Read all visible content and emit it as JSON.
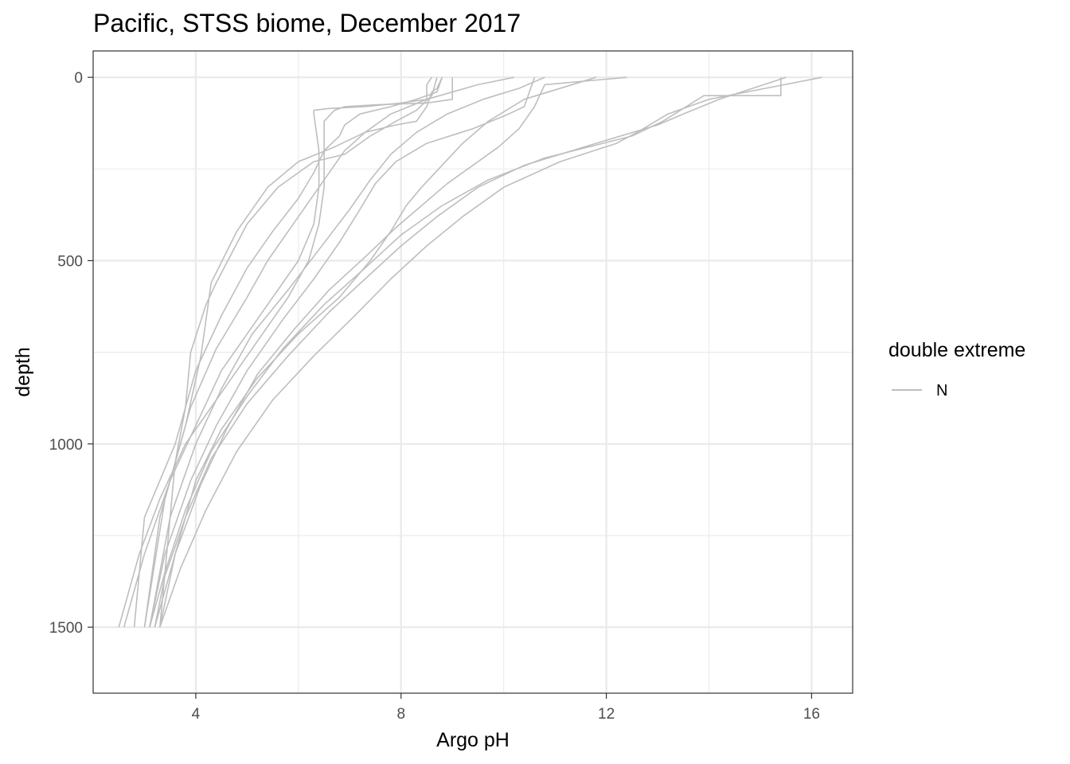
{
  "chart_data": {
    "type": "line",
    "title": "Pacific, STSS biome, December 2017",
    "xlabel": "Argo pH",
    "ylabel": "depth",
    "xlim": [
      2.0,
      16.8
    ],
    "ylim": [
      1680,
      -72
    ],
    "y_reversed": true,
    "grid": true,
    "x_ticks": [
      4,
      8,
      12,
      16
    ],
    "y_ticks": [
      0,
      500,
      1000,
      1500
    ],
    "line_color": "#bebebe",
    "legend": {
      "title": "double extreme",
      "position": "right",
      "entries": [
        "N"
      ]
    },
    "series": [
      {
        "x": [
          8.6,
          8.5,
          8.5,
          8.0,
          7.3,
          6.6,
          6.3,
          6.3,
          6.4,
          6.4,
          6.3,
          6.0,
          5.5,
          5.0,
          4.5,
          4.0,
          3.5,
          3.0,
          2.6
        ],
        "y": [
          0,
          20,
          60,
          70,
          80,
          85,
          90,
          100,
          200,
          300,
          400,
          500,
          600,
          700,
          800,
          950,
          1100,
          1300,
          1500
        ]
      },
      {
        "x": [
          9.0,
          9.0,
          8.5,
          7.5,
          6.9,
          6.7,
          6.5,
          6.5,
          6.5,
          6.4,
          6.2,
          5.8,
          5.3,
          4.8,
          4.3,
          3.8,
          3.3,
          2.9,
          2.5
        ],
        "y": [
          0,
          60,
          70,
          75,
          80,
          90,
          120,
          200,
          300,
          400,
          500,
          600,
          700,
          800,
          900,
          1000,
          1150,
          1300,
          1500
        ]
      },
      {
        "x": [
          8.8,
          8.7,
          8.3,
          7.8,
          7.2,
          6.9,
          6.8,
          6.5,
          6.3,
          6.0,
          5.5,
          5.0,
          4.5,
          4.0,
          3.6,
          3.0,
          2.8
        ],
        "y": [
          0,
          40,
          60,
          80,
          100,
          130,
          160,
          200,
          260,
          330,
          420,
          520,
          650,
          800,
          1000,
          1200,
          1500
        ]
      },
      {
        "x": [
          8.8,
          8.7,
          8.6,
          8.5,
          8.3,
          7.9,
          7.3,
          6.7,
          6.0,
          5.4,
          4.8,
          4.3,
          4.1,
          3.8,
          3.3,
          3.0
        ],
        "y": [
          0,
          30,
          40,
          80,
          120,
          130,
          150,
          190,
          230,
          300,
          420,
          560,
          760,
          950,
          1200,
          1500
        ]
      },
      {
        "x": [
          8.7,
          8.6,
          8.3,
          7.9,
          7.4,
          6.9,
          6.3,
          5.6,
          5.0,
          4.4,
          4.2,
          3.9,
          3.8,
          3.6,
          3.3
        ],
        "y": [
          0,
          50,
          90,
          120,
          160,
          210,
          230,
          300,
          400,
          560,
          620,
          750,
          900,
          1050,
          1500
        ]
      },
      {
        "x": [
          10.2,
          9.5,
          8.5,
          7.8,
          7.3,
          6.9,
          6.6,
          6.3,
          5.9,
          5.4,
          5.0,
          4.4,
          3.9,
          3.4,
          3.0
        ],
        "y": [
          0,
          20,
          60,
          100,
          150,
          200,
          260,
          320,
          400,
          500,
          600,
          740,
          900,
          1150,
          1500
        ]
      },
      {
        "x": [
          10.6,
          10.4,
          10.1,
          9.4,
          8.5,
          7.9,
          7.5,
          7.2,
          6.8,
          6.3,
          5.7,
          5.0,
          4.4,
          3.9,
          3.4,
          3.1
        ],
        "y": [
          0,
          80,
          100,
          140,
          180,
          230,
          290,
          360,
          450,
          550,
          660,
          800,
          950,
          1100,
          1300,
          1500
        ]
      },
      {
        "x": [
          10.8,
          10.3,
          9.6,
          8.9,
          8.3,
          7.8,
          7.4,
          7.0,
          6.4,
          5.8,
          5.1,
          4.5,
          4.0,
          3.5,
          3.1
        ],
        "y": [
          0,
          30,
          60,
          100,
          150,
          210,
          280,
          360,
          470,
          580,
          700,
          850,
          1000,
          1200,
          1500
        ]
      },
      {
        "x": [
          11.8,
          10.4,
          9.7,
          9.2,
          8.8,
          8.4,
          8.1,
          7.8,
          7.4,
          6.8,
          6.0,
          5.2,
          4.5,
          4.0,
          3.6,
          3.3
        ],
        "y": [
          0,
          60,
          120,
          180,
          240,
          300,
          350,
          420,
          500,
          600,
          700,
          820,
          960,
          1100,
          1300,
          1500
        ]
      },
      {
        "x": [
          12.4,
          10.8,
          10.6,
          10.3,
          9.9,
          9.4,
          8.9,
          8.4,
          7.9,
          7.3,
          6.6,
          5.9,
          5.2,
          4.6,
          4.1,
          3.6,
          3.2
        ],
        "y": [
          0,
          20,
          80,
          140,
          190,
          240,
          290,
          350,
          410,
          490,
          580,
          690,
          810,
          960,
          1110,
          1300,
          1500
        ]
      },
      {
        "x": [
          15.5,
          14.2,
          13.5,
          13.0,
          11.8,
          10.4,
          9.5,
          8.7,
          8.0,
          7.3,
          6.6,
          5.8,
          5.0,
          4.3,
          3.8,
          3.4,
          3.2
        ],
        "y": [
          0,
          60,
          100,
          130,
          180,
          240,
          300,
          380,
          460,
          550,
          640,
          760,
          890,
          1040,
          1200,
          1360,
          1500
        ]
      },
      {
        "x": [
          15.4,
          15.4,
          13.9,
          13.1,
          12.5,
          10.8,
          9.7,
          8.8,
          8.0,
          7.3,
          6.5,
          5.7,
          5.0,
          4.3,
          3.8,
          3.4,
          3.1
        ],
        "y": [
          0,
          50,
          50,
          120,
          160,
          220,
          280,
          350,
          430,
          520,
          620,
          740,
          870,
          1020,
          1180,
          1350,
          1500
        ]
      },
      {
        "x": [
          16.2,
          15.1,
          14.0,
          13.2,
          12.6,
          12.2,
          11.1,
          10.0,
          9.2,
          8.5,
          7.8,
          7.1,
          6.3,
          5.5,
          4.8,
          4.2,
          3.7,
          3.3
        ],
        "y": [
          0,
          30,
          60,
          100,
          150,
          180,
          230,
          300,
          380,
          460,
          550,
          650,
          760,
          880,
          1020,
          1180,
          1340,
          1500
        ]
      }
    ]
  }
}
